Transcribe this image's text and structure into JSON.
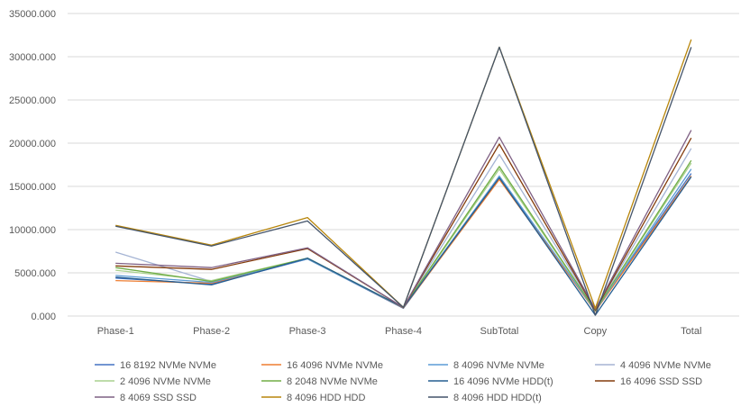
{
  "chart_data": {
    "type": "line",
    "categories": [
      "Phase-1",
      "Phase-2",
      "Phase-3",
      "Phase-4",
      "SubTotal",
      "Copy",
      "Total"
    ],
    "ylim": [
      0,
      35000
    ],
    "yticks": [
      0,
      5000,
      10000,
      15000,
      20000,
      25000,
      30000,
      35000
    ],
    "ytick_labels": [
      "0.000",
      "5000.000",
      "10000.000",
      "15000.000",
      "20000.000",
      "25000.000",
      "30000.000",
      "35000.000"
    ],
    "grid": true,
    "legend_position": "bottom",
    "series": [
      {
        "name": "16 8192 NVMe NVMe",
        "color": "#4472c4",
        "values": [
          4400,
          3700,
          6600,
          900,
          16000,
          600,
          16500
        ]
      },
      {
        "name": "16 4096 NVMe NVMe",
        "color": "#ed7d31",
        "values": [
          4100,
          3800,
          6700,
          950,
          15800,
          550,
          16200
        ]
      },
      {
        "name": "8 4096 NVMe NVMe",
        "color": "#5b9bd5",
        "values": [
          4700,
          3900,
          6600,
          1000,
          16200,
          600,
          17000
        ]
      },
      {
        "name": "4 4096 NVMe NVMe",
        "color": "#a5b4d4",
        "values": [
          7400,
          4000,
          6700,
          1000,
          18700,
          700,
          19400
        ]
      },
      {
        "name": "2 4096 NVMe NVMe",
        "color": "#a9d18e",
        "values": [
          5300,
          4100,
          6700,
          1000,
          17000,
          650,
          17700
        ]
      },
      {
        "name": "8 2048 NVMe NVMe",
        "color": "#70ad47",
        "values": [
          5600,
          4000,
          6700,
          1000,
          17300,
          650,
          18000
        ]
      },
      {
        "name": "16 4096 NVMe HDD(t)",
        "color": "#255e91",
        "values": [
          4500,
          3600,
          6700,
          1000,
          16000,
          100,
          16100
        ]
      },
      {
        "name": "16 4096 SSD SSD",
        "color": "#843c0c",
        "values": [
          5800,
          5400,
          7800,
          1000,
          19900,
          700,
          20600
        ]
      },
      {
        "name": "8 4069 SSD SSD",
        "color": "#7f6084",
        "values": [
          6100,
          5600,
          7900,
          1000,
          20700,
          800,
          21500
        ]
      },
      {
        "name": "8 4096 HDD HDD",
        "color": "#b8860b",
        "values": [
          10500,
          8200,
          11400,
          1000,
          31100,
          900,
          32000
        ]
      },
      {
        "name": "8 4096 HDD HDD(t)",
        "color": "#44546a",
        "values": [
          10400,
          8100,
          11000,
          1000,
          31100,
          100,
          31100
        ]
      }
    ]
  }
}
